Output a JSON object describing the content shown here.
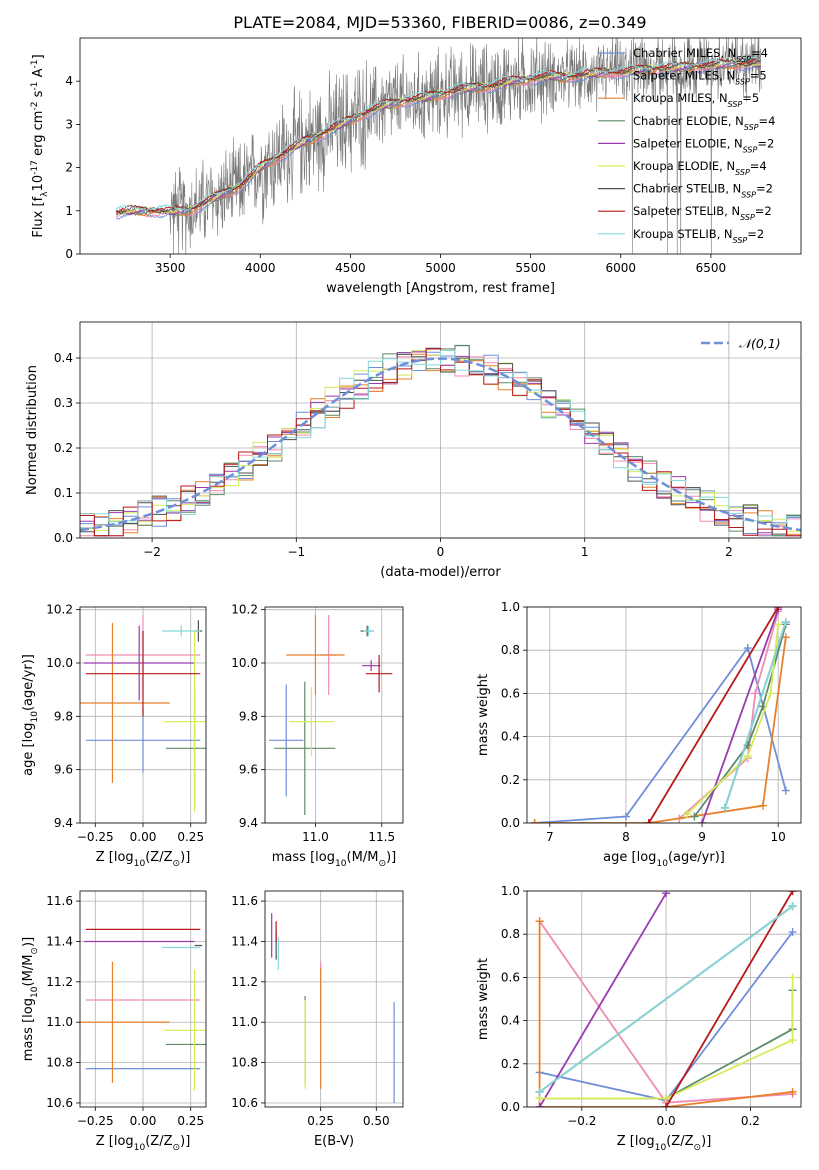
{
  "figure": {
    "title": "PLATE=2084, MJD=53360, FIBERID=0086, z=0.349"
  },
  "colors": {
    "chabrier_miles": "#6f8fd8",
    "salpeter_miles": "#f08cb4",
    "kroupa_miles": "#e8802c",
    "chabrier_elodie": "#5f8a68",
    "salpeter_elodie": "#9a3cb0",
    "kroupa_elodie": "#d4ec5a",
    "chabrier_stelib": "#505050",
    "salpeter_stelib": "#b81818",
    "kroupa_stelib": "#86d8da",
    "data": "#7a7a7a",
    "normal": "#6f8fd8"
  },
  "chart_data": [
    {
      "id": "spectrum",
      "type": "line",
      "title": "PLATE=2084, MJD=53360, FIBERID=0086, z=0.349",
      "xlabel": "wavelength [Angstrom, rest frame]",
      "ylabel": "Flux [f$_\\lambda$10$^{-17}$ erg cm$^{-2}$ s$^{-1}$ A$^{-1}$]",
      "ylabel_parts": [
        "Flux [f",
        "λ",
        "10",
        "−17",
        " erg cm",
        "−2",
        " s",
        "−1",
        " A",
        "−1",
        "]"
      ],
      "xlim": [
        3000,
        7000
      ],
      "ylim": [
        0,
        5
      ],
      "xticks": [
        3500,
        4000,
        4500,
        5000,
        5500,
        6000,
        6500
      ],
      "yticks": [
        0,
        1,
        2,
        3,
        4
      ],
      "legend_position": "upper-right",
      "legend": [
        {
          "name": "Chabrier MILES",
          "n": "4",
          "color_key": "chabrier_miles"
        },
        {
          "name": "Salpeter MILES",
          "n": "5",
          "color_key": "salpeter_miles"
        },
        {
          "name": "Kroupa MILES",
          "n": "5",
          "color_key": "kroupa_miles"
        },
        {
          "name": "Chabrier ELODIE",
          "n": "4",
          "color_key": "chabrier_elodie"
        },
        {
          "name": "Salpeter ELODIE",
          "n": "2",
          "color_key": "salpeter_elodie"
        },
        {
          "name": "Kroupa ELODIE",
          "n": "4",
          "color_key": "kroupa_elodie"
        },
        {
          "name": "Chabrier STELIB",
          "n": "2",
          "color_key": "chabrier_stelib"
        },
        {
          "name": "Salpeter STELIB",
          "n": "2",
          "color_key": "salpeter_stelib"
        },
        {
          "name": "Kroupa STELIB",
          "n": "2",
          "color_key": "kroupa_stelib"
        }
      ],
      "continuum_x": [
        3200,
        3300,
        3400,
        3500,
        3600,
        3700,
        3800,
        3900,
        4000,
        4100,
        4200,
        4300,
        4400,
        4500,
        4600,
        4700,
        4800,
        4900,
        5000,
        5100,
        5200,
        5300,
        5400,
        5500,
        5600,
        5700,
        5800,
        5900,
        6000,
        6100,
        6200,
        6300,
        6400,
        6500,
        6600,
        6700,
        6780
      ],
      "continuum_y": [
        0.95,
        1.0,
        1.0,
        0.98,
        1.0,
        1.2,
        1.4,
        1.6,
        2.0,
        2.25,
        2.5,
        2.7,
        2.9,
        3.1,
        3.3,
        3.45,
        3.55,
        3.6,
        3.7,
        3.8,
        3.85,
        3.9,
        4.0,
        4.05,
        4.1,
        4.1,
        4.15,
        4.2,
        4.2,
        4.25,
        4.3,
        4.3,
        4.35,
        4.35,
        4.4,
        4.4,
        4.4
      ],
      "data_x_range": [
        3200,
        6780
      ]
    },
    {
      "id": "residuals",
      "type": "line",
      "xlabel": "(data-model)/error",
      "ylabel": "Normed distribution",
      "xlim": [
        -2.5,
        2.5
      ],
      "ylim": [
        0,
        0.48
      ],
      "xticks": [
        -2,
        -1,
        0,
        1,
        2
      ],
      "yticks": [
        0.0,
        0.1,
        0.2,
        0.3,
        0.4
      ],
      "legend_position": "upper-right",
      "legend": [
        {
          "name": "𝒩(0,1)",
          "color_key": "normal",
          "style": "dashed"
        }
      ],
      "bin_width": 0.1,
      "bin_start": -2.5
    },
    {
      "id": "age-vs-Z",
      "type": "scatter",
      "xlabel": "Z [log$_{10}$(Z/Z$_\\odot$)]",
      "ylabel": "age  [log$_{10}$(age/yr)]",
      "xlim": [
        -0.33,
        0.33
      ],
      "ylim": [
        9.4,
        10.21
      ],
      "xticks": [
        -0.25,
        0.0,
        0.25
      ],
      "yticks": [
        9.4,
        9.6,
        9.8,
        10.0,
        10.2
      ],
      "points": [
        {
          "color_key": "chabrier_miles",
          "x": 0.0,
          "xerr": 0.3,
          "y": 9.71,
          "yerr": 0.12
        },
        {
          "color_key": "salpeter_miles",
          "x": 0.0,
          "xerr": 0.3,
          "y": 10.03,
          "yerr": 0.15
        },
        {
          "color_key": "kroupa_miles",
          "x": -0.16,
          "xerr": 0.3,
          "y": 9.85,
          "yerr": 0.3
        },
        {
          "color_key": "chabrier_elodie",
          "x": 0.27,
          "xerr": 0.15,
          "y": 9.68,
          "yerr": 0.22
        },
        {
          "color_key": "salpeter_elodie",
          "x": -0.02,
          "xerr": 0.29,
          "y": 10.0,
          "yerr": 0.14
        },
        {
          "color_key": "kroupa_elodie",
          "x": 0.27,
          "xerr": 0.16,
          "y": 9.78,
          "yerr": 0.34
        },
        {
          "color_key": "chabrier_stelib",
          "x": 0.29,
          "xerr": 0.02,
          "y": 10.12,
          "yerr": 0.04
        },
        {
          "color_key": "salpeter_stelib",
          "x": 0.0,
          "xerr": 0.3,
          "y": 9.96,
          "yerr": 0.16
        },
        {
          "color_key": "kroupa_stelib",
          "x": 0.2,
          "xerr": 0.1,
          "y": 10.12,
          "yerr": 0.02
        }
      ]
    },
    {
      "id": "age-vs-mass",
      "type": "scatter",
      "xlabel": "mass [log$_{10}$(M/M$_\\odot$)]",
      "ylabel": "",
      "xlim": [
        10.62,
        11.66
      ],
      "ylim": [
        9.4,
        10.21
      ],
      "xticks": [
        11.0,
        11.5
      ],
      "yticks": [
        9.4,
        9.6,
        9.8,
        10.0,
        10.2
      ],
      "points": [
        {
          "color_key": "chabrier_miles",
          "x": 10.78,
          "xerr": 0.13,
          "y": 9.71,
          "yerr": 0.21
        },
        {
          "color_key": "salpeter_miles",
          "x": 11.1,
          "xerr": 0.06,
          "y": 10.03,
          "yerr": 0.15
        },
        {
          "color_key": "kroupa_miles",
          "x": 11.0,
          "xerr": 0.22,
          "y": 10.03,
          "yerr": 0.15
        },
        {
          "color_key": "chabrier_elodie",
          "x": 10.92,
          "xerr": 0.23,
          "y": 9.68,
          "yerr": 0.25
        },
        {
          "color_key": "salpeter_elodie",
          "x": 11.42,
          "xerr": 0.07,
          "y": 9.99,
          "yerr": 0.02
        },
        {
          "color_key": "kroupa_elodie",
          "x": 10.97,
          "xerr": 0.17,
          "y": 9.78,
          "yerr": 0.13
        },
        {
          "color_key": "chabrier_stelib",
          "x": 11.39,
          "xerr": 0.05,
          "y": 10.12,
          "yerr": 0.02
        },
        {
          "color_key": "salpeter_stelib",
          "x": 11.48,
          "xerr": 0.1,
          "y": 9.96,
          "yerr": 0.07
        },
        {
          "color_key": "kroupa_stelib",
          "x": 11.4,
          "xerr": 0.04,
          "y": 10.12,
          "yerr": 0.02
        }
      ]
    },
    {
      "id": "weight-vs-age",
      "type": "line",
      "xlabel": "age  [log$_{10}$(age/yr)]",
      "ylabel": "mass weight",
      "xlim": [
        6.7,
        10.3
      ],
      "ylim": [
        0,
        1.0
      ],
      "xticks": [
        7,
        8,
        9,
        10
      ],
      "yticks": [
        0.0,
        0.2,
        0.4,
        0.6,
        0.8,
        1.0
      ],
      "series": [
        {
          "color_key": "chabrier_miles",
          "x": [
            6.8,
            8.0,
            9.6,
            10.1
          ],
          "y": [
            0.0,
            0.03,
            0.81,
            0.15
          ]
        },
        {
          "color_key": "salpeter_miles",
          "x": [
            8.7,
            9.6,
            9.7,
            10.0
          ],
          "y": [
            0.02,
            0.3,
            0.6,
            0.98
          ]
        },
        {
          "color_key": "kroupa_miles",
          "x": [
            6.8,
            8.3,
            9.8,
            10.1
          ],
          "y": [
            0.0,
            0.0,
            0.08,
            0.86
          ]
        },
        {
          "color_key": "chabrier_elodie",
          "x": [
            8.9,
            9.6,
            9.8,
            10.1
          ],
          "y": [
            0.03,
            0.36,
            0.54,
            0.92
          ]
        },
        {
          "color_key": "salpeter_elodie",
          "x": [
            9.0,
            10.0
          ],
          "y": [
            0.0,
            0.99
          ]
        },
        {
          "color_key": "kroupa_elodie",
          "x": [
            8.8,
            9.6,
            9.9,
            10.0
          ],
          "y": [
            0.04,
            0.31,
            0.6,
            0.92
          ]
        },
        {
          "color_key": "chabrier_stelib",
          "x": [
            9.3,
            10.1
          ],
          "y": [
            0.07,
            0.93
          ]
        },
        {
          "color_key": "salpeter_stelib",
          "x": [
            8.3,
            10.0
          ],
          "y": [
            0.0,
            1.0
          ]
        },
        {
          "color_key": "kroupa_stelib",
          "x": [
            9.3,
            10.1
          ],
          "y": [
            0.07,
            0.93
          ]
        }
      ]
    },
    {
      "id": "mass-vs-Z",
      "type": "scatter",
      "xlabel": "Z [log$_{10}$(Z/Z$_\\odot$)]",
      "ylabel": "mass [log$_{10}$(M/M$_\\odot$)]",
      "xlim": [
        -0.33,
        0.33
      ],
      "ylim": [
        10.58,
        11.65
      ],
      "xticks": [
        -0.25,
        0.0,
        0.25
      ],
      "yticks": [
        10.6,
        10.8,
        11.0,
        11.2,
        11.4,
        11.6
      ],
      "points": [
        {
          "color_key": "chabrier_miles",
          "x": 0.0,
          "xerr": 0.3,
          "y": 10.77,
          "yerr": 0.0
        },
        {
          "color_key": "salpeter_miles",
          "x": 0.0,
          "xerr": 0.3,
          "y": 11.11,
          "yerr": 0.0
        },
        {
          "color_key": "kroupa_miles",
          "x": -0.16,
          "xerr": 0.3,
          "y": 11.0,
          "yerr": 0.3
        },
        {
          "color_key": "chabrier_elodie",
          "x": 0.27,
          "xerr": 0.15,
          "y": 10.89,
          "yerr": 0.0
        },
        {
          "color_key": "salpeter_elodie",
          "x": -0.02,
          "xerr": 0.29,
          "y": 11.4,
          "yerr": 0.0
        },
        {
          "color_key": "kroupa_elodie",
          "x": 0.27,
          "xerr": 0.16,
          "y": 10.96,
          "yerr": 0.3
        },
        {
          "color_key": "chabrier_stelib",
          "x": 0.29,
          "xerr": 0.02,
          "y": 11.38,
          "yerr": 0.0
        },
        {
          "color_key": "salpeter_stelib",
          "x": 0.0,
          "xerr": 0.3,
          "y": 11.46,
          "yerr": 0.0
        },
        {
          "color_key": "kroupa_stelib",
          "x": 0.2,
          "xerr": 0.1,
          "y": 11.37,
          "yerr": 0.0
        }
      ]
    },
    {
      "id": "mass-vs-ebv",
      "type": "scatter",
      "xlabel": "E(B-V)",
      "ylabel": "",
      "xlim": [
        0.0,
        0.62
      ],
      "ylim": [
        10.58,
        11.65
      ],
      "xticks": [
        0.25,
        0.5
      ],
      "yticks": [
        10.6,
        10.8,
        11.0,
        11.2,
        11.4,
        11.6
      ],
      "points": [
        {
          "color_key": "chabrier_miles",
          "x": 0.58,
          "xerr": 0.0,
          "y": 10.85,
          "yerr": 0.25
        },
        {
          "color_key": "salpeter_miles",
          "x": 0.25,
          "xerr": 0.0,
          "y": 11.15,
          "yerr": 0.15
        },
        {
          "color_key": "kroupa_miles",
          "x": 0.25,
          "xerr": 0.0,
          "y": 10.97,
          "yerr": 0.3
        },
        {
          "color_key": "chabrier_elodie",
          "x": 0.18,
          "xerr": 0.0,
          "y": 10.91,
          "yerr": 0.22
        },
        {
          "color_key": "salpeter_elodie",
          "x": 0.03,
          "xerr": 0.0,
          "y": 11.43,
          "yerr": 0.11
        },
        {
          "color_key": "kroupa_elodie",
          "x": 0.18,
          "xerr": 0.0,
          "y": 10.89,
          "yerr": 0.22
        },
        {
          "color_key": "chabrier_stelib",
          "x": 0.05,
          "xerr": 0.0,
          "y": 11.38,
          "yerr": 0.07
        },
        {
          "color_key": "salpeter_stelib",
          "x": 0.05,
          "xerr": 0.0,
          "y": 11.45,
          "yerr": 0.05
        },
        {
          "color_key": "kroupa_stelib",
          "x": 0.06,
          "xerr": 0.0,
          "y": 11.34,
          "yerr": 0.08
        }
      ]
    },
    {
      "id": "weight-vs-Z",
      "type": "line",
      "xlabel": "Z [log$_{10}$(Z/Z$_\\odot$)]",
      "ylabel": "mass weight",
      "xlim": [
        -0.33,
        0.32
      ],
      "ylim": [
        0,
        1.0
      ],
      "xticks": [
        -0.2,
        0.0,
        0.2
      ],
      "yticks": [
        0.0,
        0.2,
        0.4,
        0.6,
        0.8,
        1.0
      ],
      "series": [
        {
          "color_key": "chabrier_miles",
          "x": [
            -0.3,
            0.0,
            0.3
          ],
          "y": [
            0.16,
            0.03,
            0.81
          ]
        },
        {
          "color_key": "salpeter_miles",
          "x": [
            -0.3,
            0.0,
            0.3
          ],
          "y": [
            0.86,
            0.02,
            0.06
          ]
        },
        {
          "color_key": "kroupa_miles",
          "x": [
            -0.3,
            -0.3,
            0.0,
            0.3
          ],
          "y": [
            0.86,
            0.0,
            0.0,
            0.07
          ]
        },
        {
          "color_key": "chabrier_elodie",
          "x": [
            -0.3,
            0.0,
            0.3,
            0.3
          ],
          "y": [
            0.04,
            0.04,
            0.36,
            0.54
          ]
        },
        {
          "color_key": "salpeter_elodie",
          "x": [
            -0.3,
            0.0
          ],
          "y": [
            0.0,
            0.99
          ]
        },
        {
          "color_key": "kroupa_elodie",
          "x": [
            -0.3,
            0.0,
            0.3,
            0.3
          ],
          "y": [
            0.04,
            0.04,
            0.31,
            0.6
          ]
        },
        {
          "color_key": "chabrier_stelib",
          "x": [
            -0.3,
            0.3
          ],
          "y": [
            0.07,
            0.93
          ]
        },
        {
          "color_key": "salpeter_stelib",
          "x": [
            0.0,
            0.3
          ],
          "y": [
            0.0,
            1.0
          ]
        },
        {
          "color_key": "kroupa_stelib",
          "x": [
            -0.3,
            0.3
          ],
          "y": [
            0.07,
            0.93
          ]
        }
      ]
    }
  ]
}
